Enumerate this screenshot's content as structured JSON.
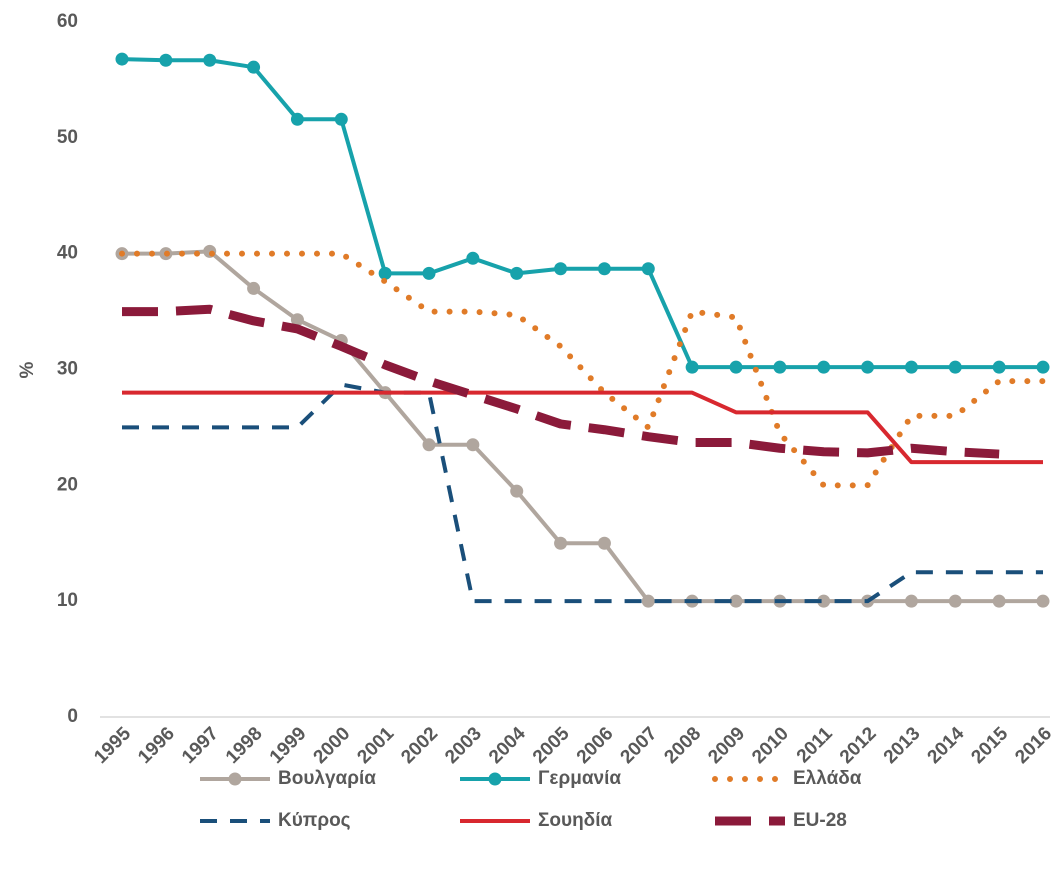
{
  "chart_data": {
    "type": "line",
    "categories": [
      "1995",
      "1996",
      "1997",
      "1998",
      "1999",
      "2000",
      "2001",
      "2002",
      "2003",
      "2004",
      "2005",
      "2006",
      "2007",
      "2008",
      "2009",
      "2010",
      "2011",
      "2012",
      "2013",
      "2014",
      "2015",
      "2016"
    ],
    "y_label": "%",
    "ylim": [
      0,
      60
    ],
    "yticks": [
      0,
      10,
      20,
      30,
      40,
      50,
      60
    ],
    "series": [
      {
        "name": "Βουλγαρία",
        "color": "#b0a69e",
        "style": "solid",
        "markers": true,
        "values": [
          40,
          40,
          40.2,
          37,
          34.3,
          32.5,
          28,
          23.5,
          23.5,
          19.5,
          15,
          15,
          10,
          10,
          10,
          10,
          10,
          10,
          10,
          10,
          10,
          10
        ]
      },
      {
        "name": "Γερμανία",
        "color": "#17a2ab",
        "style": "solid",
        "markers": true,
        "values": [
          56.8,
          56.7,
          56.7,
          56.1,
          51.6,
          51.6,
          38.3,
          38.3,
          39.6,
          38.3,
          38.7,
          38.7,
          38.7,
          30.2,
          30.2,
          30.2,
          30.2,
          30.2,
          30.2,
          30.2,
          30.2,
          30.2
        ]
      },
      {
        "name": "Ελλάδα",
        "color": "#e07b28",
        "style": "dotted",
        "markers": false,
        "values": [
          40,
          40,
          40,
          40,
          40,
          40,
          37.6,
          35,
          35,
          34.7,
          32,
          28,
          25,
          35,
          34.5,
          24.5,
          20,
          20,
          26,
          26,
          29,
          29
        ]
      },
      {
        "name": "Κύπρος",
        "color": "#1a4f7a",
        "style": "dashed",
        "markers": false,
        "values": [
          25,
          25,
          25,
          25,
          25,
          28.7,
          28,
          28,
          10,
          10,
          10,
          10,
          10,
          10,
          10,
          10,
          10,
          10,
          12.5,
          12.5,
          12.5,
          12.5
        ]
      },
      {
        "name": "Σουηδία",
        "color": "#d8282f",
        "style": "solid",
        "markers": false,
        "values": [
          28,
          28,
          28,
          28,
          28,
          28,
          28,
          28,
          28,
          28,
          28,
          28,
          28,
          28,
          26.3,
          26.3,
          26.3,
          26.3,
          22,
          22,
          22,
          22
        ]
      },
      {
        "name": "EU-28",
        "color": "#8b1a3a",
        "style": "thickdash",
        "markers": false,
        "values": [
          35,
          35,
          35.2,
          34.2,
          33.5,
          32,
          30.4,
          29,
          27.8,
          26.6,
          25.3,
          24.8,
          24.2,
          23.7,
          23.7,
          23.2,
          22.9,
          22.8,
          23.2,
          22.9,
          22.7,
          null
        ]
      }
    ]
  }
}
